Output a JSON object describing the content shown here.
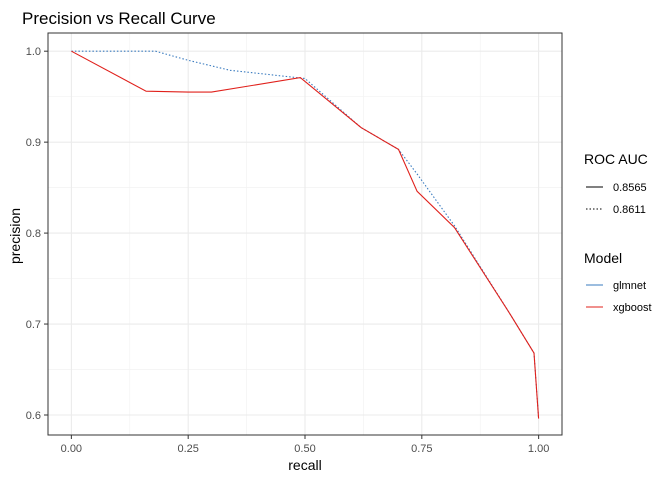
{
  "chart_data": {
    "type": "line",
    "title": "Precision vs Recall Curve",
    "xlabel": "recall",
    "ylabel": "precision",
    "xlim": [
      -0.05,
      1.05
    ],
    "ylim": [
      0.578,
      1.02
    ],
    "x_ticks": [
      0.0,
      0.25,
      0.5,
      0.75,
      1.0
    ],
    "x_tick_labels": [
      "0.00",
      "0.25",
      "0.50",
      "0.75",
      "1.00"
    ],
    "y_ticks": [
      0.6,
      0.7,
      0.8,
      0.9,
      1.0
    ],
    "y_tick_labels": [
      "0.6",
      "0.7",
      "0.8",
      "0.9",
      "1.0"
    ],
    "grid": true,
    "legend_position": "right",
    "legends": [
      {
        "title": "ROC AUC",
        "items": [
          {
            "label": "0.8565",
            "linetype": "solid"
          },
          {
            "label": "0.8611",
            "linetype": "dotted"
          }
        ]
      },
      {
        "title": "Model",
        "items": [
          {
            "label": "glmnet",
            "color": "#3a7bbf"
          },
          {
            "label": "xgboost",
            "color": "#e0201b"
          }
        ]
      }
    ],
    "series": [
      {
        "name": "glmnet",
        "color": "#3a7bbf",
        "linetype": "dotted",
        "x": [
          0.0,
          0.18,
          0.25,
          0.34,
          0.5,
          0.62,
          0.7,
          0.74,
          0.82,
          0.94,
          0.99,
          1.0
        ],
        "y": [
          1.0,
          1.0,
          0.99,
          0.979,
          0.97,
          0.916,
          0.892,
          0.865,
          0.808,
          0.71,
          0.668,
          0.596
        ]
      },
      {
        "name": "xgboost",
        "color": "#e0201b",
        "linetype": "solid",
        "x": [
          0.0,
          0.16,
          0.25,
          0.3,
          0.49,
          0.62,
          0.7,
          0.74,
          0.82,
          0.94,
          0.99,
          1.0
        ],
        "y": [
          1.0,
          0.956,
          0.955,
          0.955,
          0.971,
          0.916,
          0.892,
          0.846,
          0.806,
          0.71,
          0.668,
          0.596
        ]
      }
    ]
  }
}
